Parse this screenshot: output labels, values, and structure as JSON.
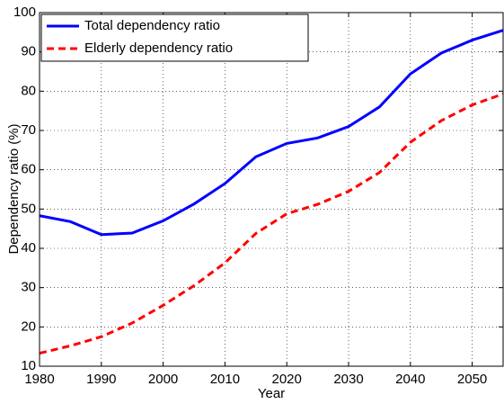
{
  "chart_data": {
    "type": "line",
    "xlabel": "Year",
    "ylabel": "Dependency ratio (%)",
    "x": [
      1980,
      1985,
      1990,
      1995,
      2000,
      2005,
      2010,
      2015,
      2020,
      2025,
      2030,
      2035,
      2040,
      2045,
      2050,
      2055
    ],
    "series": [
      {
        "name": "Total dependency ratio",
        "color": "#0000ff",
        "dash": "solid",
        "values": [
          48.3,
          46.8,
          43.5,
          43.9,
          47,
          51.3,
          56.5,
          63.3,
          66.7,
          68.1,
          71,
          76,
          84.4,
          89.7,
          93,
          95.5
        ]
      },
      {
        "name": "Elderly dependency ratio",
        "color": "#ff0000",
        "dash": "dashed",
        "values": [
          13.3,
          15.2,
          17.5,
          21,
          25.5,
          30.5,
          36.3,
          43.8,
          48.8,
          51.2,
          54.5,
          59.3,
          67,
          72.5,
          76.5,
          79.3
        ]
      }
    ],
    "xlim": [
      1980,
      2055
    ],
    "xticks": [
      1980,
      1990,
      2000,
      2010,
      2020,
      2030,
      2040,
      2050
    ],
    "ylim": [
      10,
      100
    ],
    "yticks": [
      10,
      20,
      30,
      40,
      50,
      60,
      70,
      80,
      90,
      100
    ],
    "grid": true,
    "legend": "upper-left"
  }
}
